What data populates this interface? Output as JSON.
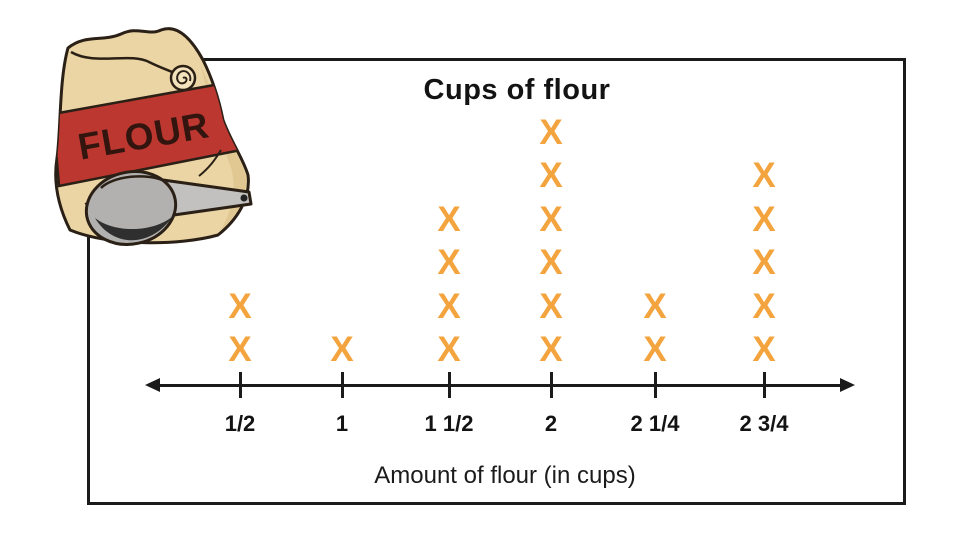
{
  "frame": {
    "border_color": "#1B1B1B",
    "background": "#FFFFFF"
  },
  "chart_data": {
    "type": "dotplot",
    "title": "Cups of flour",
    "xlabel": "Amount of flour (in cups)",
    "categories": [
      "1/2",
      "1",
      "1 1/2",
      "2",
      "2 1/4",
      "2 3/4"
    ],
    "values": [
      2,
      1,
      4,
      6,
      2,
      5
    ],
    "marker": "X",
    "marker_color": "#F4A43E",
    "axis_color": "#1B1B1B",
    "text_color": "#131313",
    "grid": false,
    "legend": "none",
    "axis_arrows": "both",
    "ylim": [
      0,
      6
    ]
  },
  "illustration": {
    "name": "flour-bag-with-scoop",
    "bag_label": "FLOUR",
    "bag_color": "#EBD5A4",
    "bag_shade_color": "#D9BE85",
    "roll_color": "#F2E3BC",
    "band_color": "#BB3730",
    "band_label_color": "#33150F",
    "scoop_color": "#B2B1AF",
    "scoop_handle_color": "#C2C1BF",
    "scoop_shadow_color": "#2F2F2F",
    "outline_color": "#2B2016"
  }
}
